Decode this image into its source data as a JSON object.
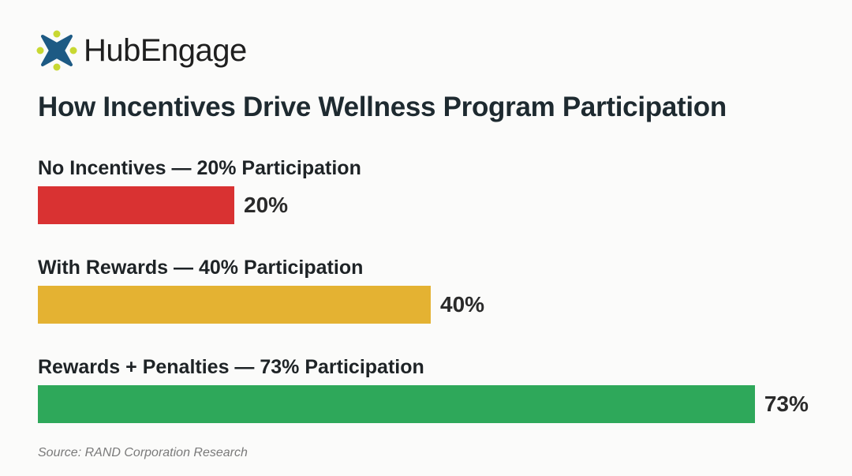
{
  "brand": {
    "name": "HubEngage",
    "logo_colors": {
      "blue": "#1d5a84",
      "dot": "#c8d832"
    }
  },
  "chart_data": {
    "type": "bar",
    "orientation": "horizontal",
    "title": "How Incentives Drive Wellness Program Participation",
    "categories": [
      "No Incentives — 20% Participation",
      "With Rewards — 40% Participation",
      "Rewards + Penalties — 73% Participation"
    ],
    "values": [
      20,
      40,
      73
    ],
    "value_labels": [
      "20%",
      "40%",
      "73%"
    ],
    "colors": [
      "#d93232",
      "#e4b232",
      "#2ea85a"
    ],
    "xlim": [
      0,
      100
    ],
    "grid": false
  },
  "source": "Source: RAND Corporation Research"
}
